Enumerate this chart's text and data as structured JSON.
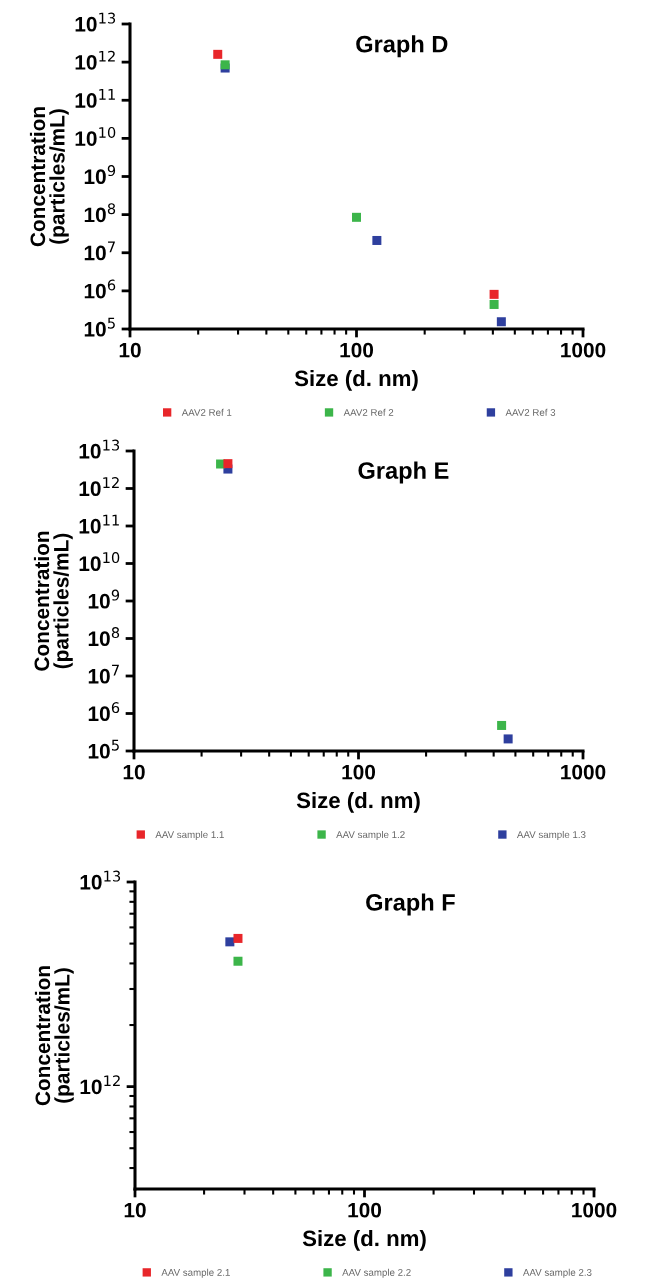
{
  "chart_data": [
    {
      "type": "scatter",
      "title": "Graph D",
      "xlabel": "Size (d. nm)",
      "ylabel": "Concentration\n(particles/mL)",
      "log": "xy",
      "grid": false,
      "legend": "bottom",
      "marker": "square",
      "xlim": [
        10,
        1000
      ],
      "xticks": [
        10,
        100,
        1000
      ],
      "ylim": [
        100000,
        10000000000000
      ],
      "yticks": [
        {
          "value": 100000,
          "label": "10$^{5}$"
        },
        {
          "value": 1000000,
          "label": "10$^{6}$"
        },
        {
          "value": 10000000,
          "label": "10$^{7}$"
        },
        {
          "value": 100000000,
          "label": "10$^{8}$"
        },
        {
          "value": 1000000000,
          "label": "10$^{9}$"
        },
        {
          "value": 10000000000,
          "label": "10$^{10}$"
        },
        {
          "value": 100000000000,
          "label": "10$^{11}$"
        },
        {
          "value": 1000000000000,
          "label": "10$^{12}$"
        },
        {
          "value": 10000000000000,
          "label": "10$^{13}$"
        }
      ],
      "series": [
        {
          "name": "AAV2 Ref 1",
          "color": "#e8262a",
          "x": [
            24.4,
            405
          ],
          "values": [
            1600000000000,
            810000
          ]
        },
        {
          "name": "AAV2 Ref 2",
          "color": "#3cb54a",
          "x": [
            26.3,
            100,
            405
          ],
          "values": [
            850000000000,
            85000000,
            440000
          ]
        },
        {
          "name": "AAV2 Ref 3",
          "color": "#2e3f9e",
          "x": [
            26.3,
            123,
            436
          ],
          "values": [
            700000000000,
            21000000,
            155000
          ]
        }
      ]
    },
    {
      "type": "scatter",
      "title": "Graph E",
      "xlabel": "Size (d. nm)",
      "ylabel": "Concentration\n(particles/mL)",
      "log": "xy",
      "grid": false,
      "legend": "bottom",
      "marker": "square",
      "xlim": [
        10,
        1000
      ],
      "xticks": [
        10,
        100,
        1000
      ],
      "ylim": [
        100000,
        10000000000000
      ],
      "yticks": [
        {
          "value": 100000,
          "label": "10$^{5}$"
        },
        {
          "value": 1000000,
          "label": "10$^{6}$"
        },
        {
          "value": 10000000,
          "label": "10$^{7}$"
        },
        {
          "value": 100000000,
          "label": "10$^{8}$"
        },
        {
          "value": 1000000000,
          "label": "10$^{9}$"
        },
        {
          "value": 10000000000,
          "label": "10$^{10}$"
        },
        {
          "value": 100000000000,
          "label": "10$^{11}$"
        },
        {
          "value": 1000000000000,
          "label": "10$^{12}$"
        },
        {
          "value": 10000000000000,
          "label": "10$^{13}$"
        }
      ],
      "series": [
        {
          "name": "AAV sample 1.1",
          "color": "#e8262a",
          "x": [
            26.2
          ],
          "values": [
            4600000000000
          ]
        },
        {
          "name": "AAV sample 1.2",
          "color": "#3cb54a",
          "x": [
            24.3,
            434
          ],
          "values": [
            4500000000000,
            480000
          ]
        },
        {
          "name": "AAV sample 1.3",
          "color": "#2e3f9e",
          "x": [
            26.2,
            464
          ],
          "values": [
            3300000000000,
            210000
          ]
        }
      ]
    },
    {
      "type": "scatter",
      "title": "Graph F",
      "xlabel": "Size (d. nm)",
      "ylabel": "Concentration\n(particles/mL)",
      "log": "xy",
      "grid": false,
      "legend": "bottom",
      "marker": "square",
      "xlim": [
        10,
        1000
      ],
      "xticks": [
        10,
        100,
        1000
      ],
      "ylim": [
        316000000000,
        10000000000000
      ],
      "yticks": [
        {
          "value": 1000000000000,
          "label": "10$^{12}$"
        },
        {
          "value": 10000000000000,
          "label": "10$^{13}$"
        }
      ],
      "series": [
        {
          "name": "AAV sample 2.1",
          "color": "#e8262a",
          "x": [
            28.1
          ],
          "values": [
            5300000000000
          ]
        },
        {
          "name": "AAV sample 2.2",
          "color": "#3cb54a",
          "x": [
            28.1
          ],
          "values": [
            4100000000000
          ]
        },
        {
          "name": "AAV sample 2.3",
          "color": "#2e3f9e",
          "x": [
            25.9
          ],
          "values": [
            5100000000000
          ]
        }
      ]
    }
  ]
}
